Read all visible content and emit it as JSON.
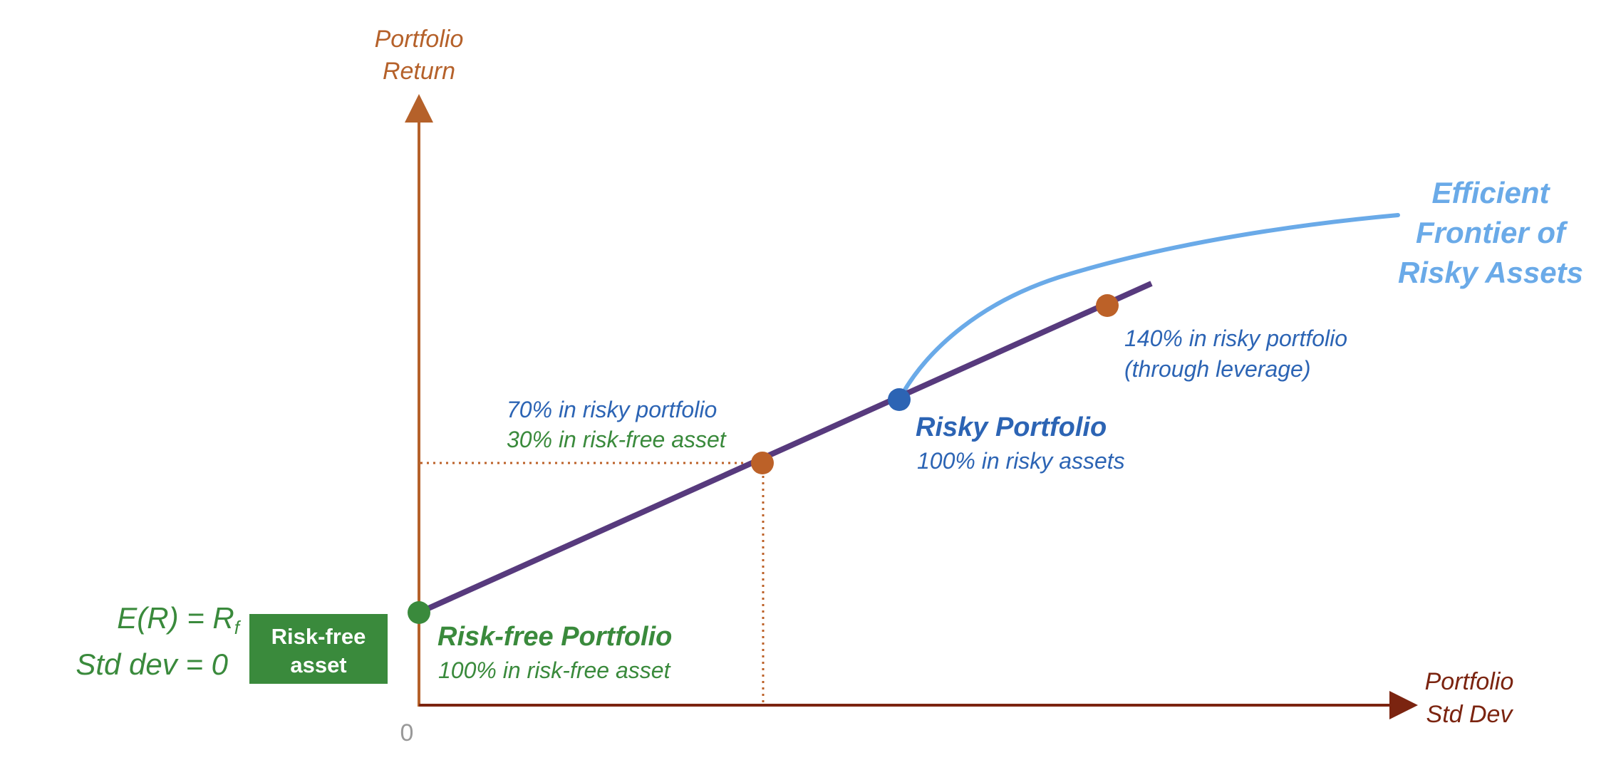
{
  "axes": {
    "y_label_line1": "Portfolio",
    "y_label_line2": "Return",
    "x_label_line1": "Portfolio",
    "x_label_line2": "Std Dev",
    "origin_label": "0"
  },
  "risk_free": {
    "er_label": "E(R) = R",
    "er_subscript": "f",
    "std_label": "Std dev = 0",
    "box_line1": "Risk-free",
    "box_line2": "asset",
    "title": "Risk-free Portfolio",
    "subtitle": "100% in risk-free asset"
  },
  "mix_point": {
    "line1": "70% in risky portfolio",
    "line2": "30% in risk-free asset"
  },
  "risky_point": {
    "title": "Risky Portfolio",
    "subtitle": "100% in risky assets"
  },
  "leverage_point": {
    "line1": "140% in risky portfolio",
    "line2": "(through leverage)"
  },
  "frontier": {
    "line1": "Efficient",
    "line2": "Frontier of",
    "line3": "Risky Assets"
  },
  "colors": {
    "axis_y": "#b5612a",
    "axis_x": "#7b2410",
    "cal_line": "#573a7d",
    "frontier": "#6aaae8",
    "green": "#3a8a3c",
    "blue": "#2c64b4",
    "orange_point": "#bc6128",
    "gray": "#999999"
  }
}
